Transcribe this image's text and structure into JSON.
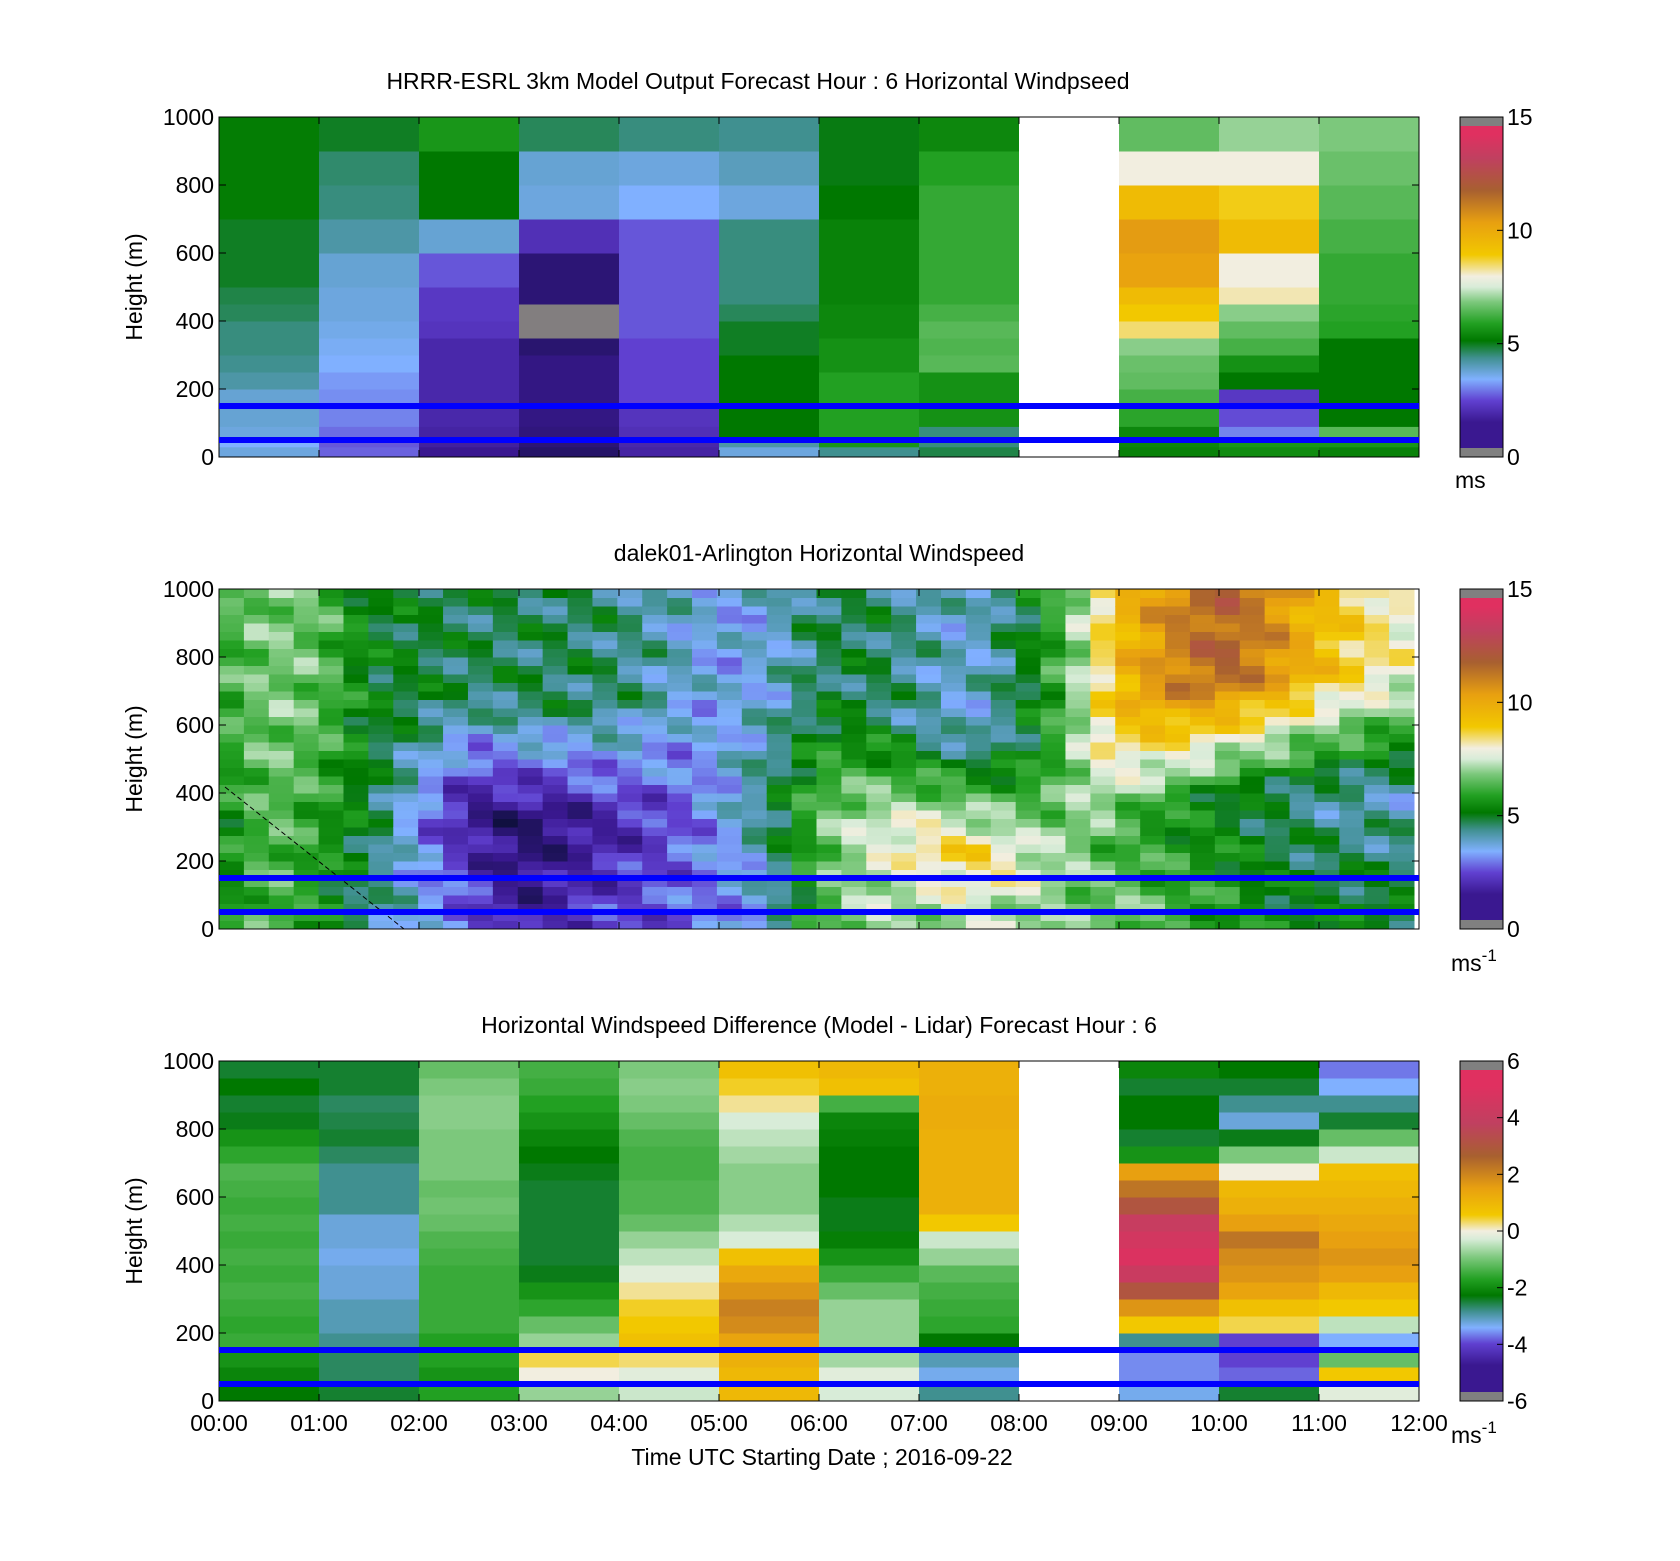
{
  "figure": {
    "xlabel": "Time UTC  Starting Date ; 2016-09-22",
    "x_ticks": [
      "00:00",
      "01:00",
      "02:00",
      "03:00",
      "04:00",
      "05:00",
      "06:00",
      "07:00",
      "08:00",
      "09:00",
      "10:00",
      "11:00",
      "12:00"
    ],
    "line_color": "#0000ff",
    "overlay_lines_height_m": [
      150,
      50
    ]
  },
  "colors": {
    "scale": [
      "#101040",
      "#3a1890",
      "#6040d0",
      "#80b0ff",
      "#409090",
      "#007800",
      "#22a022",
      "#7cc87c",
      "#d8ecd8",
      "#f2eee0",
      "#f2c800",
      "#e8a010",
      "#a86030",
      "#c04060",
      "#e03060",
      "#808080"
    ]
  },
  "chart_data": [
    {
      "type": "heatmap",
      "id": "model",
      "title": "HRRR-ESRL 3km Model Output   Forecast Hour : 6 Horizontal Windpseed",
      "ylabel": "Height (m)",
      "xlabel": "",
      "xlim": [
        0,
        12
      ],
      "ylim": [
        0,
        1000
      ],
      "y_ticks": [
        "0",
        "200",
        "400",
        "600",
        "800",
        "1000"
      ],
      "colorbar": {
        "ticks": [
          "0",
          "5",
          "10",
          "15"
        ],
        "range": [
          0,
          15
        ],
        "unit": "ms"
      },
      "x_edges": [
        0,
        1,
        2,
        3,
        4,
        5,
        6,
        7,
        8,
        9,
        10,
        11,
        12
      ],
      "y_edges": [
        0,
        30,
        50,
        90,
        150,
        200,
        250,
        300,
        350,
        400,
        450,
        500,
        600,
        700,
        800,
        900,
        1000
      ],
      "columns": [
        [
          3.5,
          3.2,
          3.5,
          3.6,
          3.6,
          4.0,
          4.2,
          4.3,
          4.3,
          4.5,
          4.6,
          4.8,
          4.8,
          5.1,
          5.1,
          5.1
        ],
        [
          2.5,
          2.4,
          2.6,
          2.8,
          2.9,
          3.0,
          3.2,
          3.3,
          3.4,
          3.5,
          3.5,
          3.6,
          4.0,
          4.3,
          4.4,
          4.8
        ],
        [
          1.2,
          1.4,
          1.5,
          1.6,
          1.6,
          1.6,
          1.6,
          1.6,
          1.9,
          2.0,
          2.0,
          2.4,
          3.6,
          5.0,
          5.0,
          5.6
        ],
        [
          0.6,
          0.8,
          0.9,
          1.0,
          1.0,
          1.0,
          1.0,
          0.7,
          15,
          15,
          0.8,
          0.8,
          1.8,
          3.5,
          3.6,
          4.5
        ],
        [
          1.5,
          1.6,
          1.8,
          1.9,
          2.2,
          2.2,
          2.2,
          2.2,
          2.4,
          2.4,
          2.4,
          2.4,
          2.4,
          3.2,
          3.5,
          4.3
        ],
        [
          3.5,
          4.0,
          5.0,
          5.0,
          5.0,
          5.0,
          5.0,
          4.8,
          4.8,
          4.5,
          4.3,
          4.3,
          4.3,
          3.5,
          3.8,
          4.2
        ],
        [
          4.2,
          5.6,
          5.8,
          5.8,
          5.8,
          5.8,
          5.5,
          5.5,
          5.3,
          5.3,
          5.2,
          5.2,
          5.2,
          5.0,
          4.9,
          4.9
        ],
        [
          4.6,
          4.3,
          4.3,
          5.5,
          5.5,
          5.5,
          6.4,
          6.3,
          6.4,
          6.2,
          6.0,
          6.0,
          6.0,
          6.0,
          5.8,
          5.3
        ],
        [
          null,
          null,
          null,
          null,
          null,
          null,
          null,
          null,
          null,
          null,
          null,
          null,
          null,
          null,
          null,
          null
        ],
        [
          5.2,
          5.3,
          5.3,
          5.9,
          6.2,
          6.5,
          6.6,
          6.9,
          8.5,
          9.0,
          9.5,
          10.4,
          10.6,
          9.5,
          8.0,
          6.5
        ],
        [
          5.4,
          5.6,
          2.8,
          2.3,
          2.0,
          5.0,
          5.5,
          6.2,
          6.5,
          6.9,
          8.2,
          8.0,
          9.5,
          8.9,
          8.0,
          7.0
        ],
        [
          5.2,
          5.6,
          6.4,
          5.0,
          5.0,
          5.0,
          5.0,
          5.0,
          5.8,
          5.9,
          6.0,
          6.0,
          6.2,
          6.4,
          6.6,
          6.8
        ]
      ]
    },
    {
      "type": "heatmap",
      "id": "lidar",
      "title": "dalek01-Arlington  Horizontal Windspeed",
      "ylabel": "Height (m)",
      "xlabel": "",
      "xlim": [
        0,
        12
      ],
      "ylim": [
        0,
        1000
      ],
      "y_ticks": [
        "0",
        "200",
        "400",
        "600",
        "800",
        "1000"
      ],
      "colorbar": {
        "ticks": [
          "0",
          "5",
          "10",
          "15"
        ],
        "range": [
          0,
          15
        ],
        "unit": "ms-1"
      },
      "time_profile": {
        "hours": [
          0.0,
          0.5,
          1.0,
          1.5,
          2.0,
          2.5,
          3.0,
          3.5,
          4.0,
          4.5,
          5.0,
          5.5,
          6.0,
          6.5,
          7.0,
          7.5,
          8.0,
          8.5,
          9.0,
          9.5,
          10.0,
          10.5,
          11.0,
          11.5,
          11.95
        ],
        "surface_ms": [
          5.2,
          6.5,
          5.5,
          4.2,
          3.5,
          2.4,
          1.2,
          1.8,
          2.2,
          2.4,
          2.8,
          3.4,
          6.2,
          7.2,
          7.0,
          7.4,
          7.2,
          6.5,
          6.8,
          6.2,
          5.8,
          5.2,
          5.0,
          5.0,
          5.0
        ],
        "jet_core_ms": [
          5.2,
          6.5,
          5.8,
          4.8,
          2.8,
          1.2,
          0.6,
          1.0,
          1.6,
          2.2,
          3.2,
          4.5,
          6.5,
          7.5,
          8.5,
          9.0,
          8.0,
          7.0,
          6.0,
          5.5,
          5.0,
          4.5,
          4.0,
          3.8,
          3.6
        ],
        "jet_height_m": [
          300,
          300,
          300,
          300,
          320,
          360,
          300,
          320,
          300,
          350,
          400,
          350,
          350,
          300,
          250,
          220,
          200,
          150,
          300,
          350,
          400,
          400,
          400,
          400,
          400
        ],
        "upper_ms": [
          6.0,
          6.8,
          6.5,
          5.0,
          4.8,
          4.5,
          4.5,
          4.5,
          4.3,
          3.8,
          3.2,
          3.5,
          4.5,
          4.6,
          4.0,
          3.5,
          4.6,
          6.5,
          9.5,
          11.0,
          12.0,
          11.0,
          9.5,
          8.5,
          7.8
        ]
      }
    },
    {
      "type": "heatmap",
      "id": "difference",
      "title": "Horizontal Windspeed Difference (Model - Lidar) Forecast Hour : 6",
      "ylabel": "Height (m)",
      "xlabel": "Time UTC  Starting Date ; 2016-09-22",
      "xlim": [
        0,
        12
      ],
      "ylim": [
        0,
        1000
      ],
      "y_ticks": [
        "0",
        "200",
        "400",
        "600",
        "800",
        "1000"
      ],
      "colorbar": {
        "ticks": [
          "-6",
          "-4",
          "-2",
          "0",
          "2",
          "4",
          "6"
        ],
        "range": [
          -6,
          6
        ],
        "unit": "ms-1"
      },
      "x_edges": [
        0,
        1,
        2,
        3,
        4,
        5,
        6,
        7,
        8,
        9,
        10,
        11,
        12
      ],
      "y_edges": [
        0,
        50,
        100,
        150,
        200,
        250,
        300,
        350,
        400,
        450,
        500,
        550,
        600,
        650,
        700,
        750,
        800,
        850,
        900,
        950,
        1000
      ],
      "columns": [
        [
          -2.4,
          -2.2,
          -2.0,
          -1.6,
          -1.7,
          -1.6,
          -1.5,
          -1.6,
          -1.5,
          -1.6,
          -1.5,
          -1.6,
          -1.5,
          -1.4,
          -1.7,
          -2.0,
          -2.5,
          -2.6,
          -2.4,
          -2.6
        ],
        [
          -2.6,
          -2.8,
          -2.8,
          -3.0,
          -3.2,
          -3.2,
          -3.4,
          -3.4,
          -3.5,
          -3.4,
          -3.4,
          -3.0,
          -3.0,
          -3.0,
          -2.8,
          -2.6,
          -2.7,
          -2.8,
          -2.6,
          -2.6
        ],
        [
          -1.8,
          -2.0,
          -1.8,
          -1.8,
          -1.6,
          -1.6,
          -1.6,
          -1.6,
          -1.5,
          -1.4,
          -1.2,
          -1.1,
          -1.2,
          -1.0,
          -1.0,
          -1.0,
          -0.9,
          -0.9,
          -1.0,
          -1.2
        ],
        [
          -0.8,
          0.0,
          0.4,
          -0.8,
          -1.2,
          -1.7,
          -2.0,
          -2.5,
          -2.6,
          -2.6,
          -2.6,
          -2.6,
          -2.6,
          -2.5,
          -2.4,
          -2.2,
          -2.0,
          -1.8,
          -1.6,
          -1.5
        ],
        [
          -0.4,
          -0.2,
          0.3,
          0.8,
          0.6,
          0.5,
          0.2,
          -0.2,
          -0.5,
          -0.8,
          -1.2,
          -1.4,
          -1.4,
          -1.5,
          -1.5,
          -1.4,
          -1.2,
          -1.0,
          -0.9,
          -1.0
        ],
        [
          1.0,
          1.0,
          1.2,
          1.5,
          2.0,
          2.2,
          1.8,
          1.4,
          0.8,
          -0.3,
          -0.6,
          -0.9,
          -0.9,
          -0.9,
          -0.7,
          -0.5,
          -0.3,
          0.2,
          0.5,
          0.8
        ],
        [
          -0.3,
          -0.2,
          -0.7,
          -0.8,
          -0.8,
          -0.8,
          -1.2,
          -1.6,
          -2.0,
          -2.3,
          -2.5,
          -2.5,
          -2.4,
          -2.4,
          -2.4,
          -2.3,
          -2.2,
          -1.5,
          0.8,
          1.0
        ],
        [
          -3.0,
          -3.5,
          -3.2,
          -2.4,
          -1.7,
          -1.6,
          -1.5,
          -1.3,
          -0.8,
          -0.4,
          0.6,
          1.2,
          1.2,
          1.2,
          1.2,
          1.2,
          1.3,
          1.3,
          1.2,
          1.2
        ],
        [
          null,
          null,
          null,
          null,
          null,
          null,
          null,
          null,
          null,
          null,
          null,
          null,
          null,
          null,
          null,
          null,
          null,
          null,
          null,
          null
        ],
        [
          -3.5,
          -3.8,
          -3.8,
          -3.0,
          0.6,
          1.8,
          3.2,
          4.4,
          5.2,
          4.8,
          4.3,
          3.2,
          2.4,
          1.6,
          -2.0,
          -2.6,
          -2.4,
          -2.4,
          -2.6,
          -2.2
        ],
        [
          -2.6,
          -4.0,
          -4.2,
          -4.2,
          0.4,
          0.8,
          1.5,
          1.8,
          2.0,
          2.4,
          1.6,
          1.2,
          1.0,
          0.0,
          -1.0,
          -2.5,
          -3.4,
          -3.0,
          -2.6,
          -2.4
        ],
        [
          -0.2,
          0.6,
          -1.2,
          -3.6,
          -0.5,
          0.6,
          1.0,
          1.6,
          1.8,
          1.6,
          1.4,
          1.2,
          1.0,
          0.8,
          -0.4,
          -1.2,
          -2.6,
          -3.0,
          -3.6,
          -3.9
        ]
      ]
    }
  ]
}
